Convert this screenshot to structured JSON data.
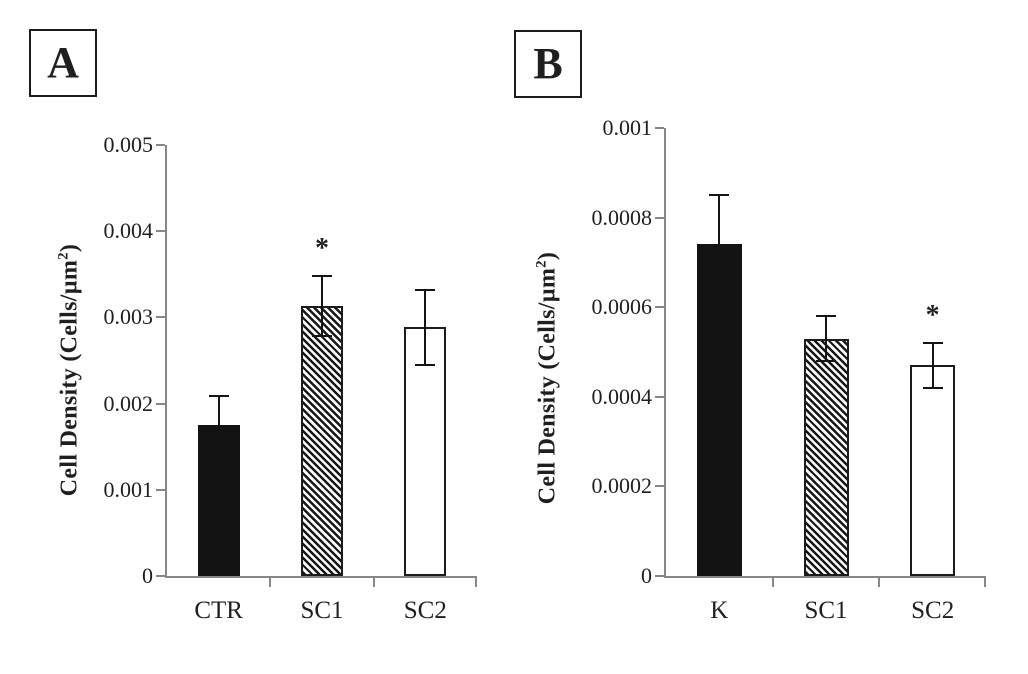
{
  "page": {
    "background": "#ffffff",
    "text_color": "#1f1f1f",
    "axis_color": "#878787"
  },
  "chart_data": [
    {
      "type": "bar",
      "panel_label": "A",
      "title": "",
      "xlabel": "",
      "ylabel": "Cell Density (Cells/µm²)",
      "ylabel_main": "Cell Density (Cells/µm",
      "ylabel_sup": "2",
      "ylabel_close": ")",
      "ylim": [
        0,
        0.005
      ],
      "grid": false,
      "legend": "none",
      "yticks": [
        {
          "value": 0,
          "label": "0"
        },
        {
          "value": 0.001,
          "label": "0.001"
        },
        {
          "value": 0.002,
          "label": "0.002"
        },
        {
          "value": 0.003,
          "label": "0.003"
        },
        {
          "value": 0.004,
          "label": "0.004"
        },
        {
          "value": 0.005,
          "label": "0.005"
        }
      ],
      "categories": [
        "CTR",
        "SC1",
        "SC2"
      ],
      "bars": [
        {
          "category": "CTR",
          "value": 0.00175,
          "err_up": 0.00034,
          "err_down": 0.00034,
          "fill": "solid-black",
          "sig": ""
        },
        {
          "category": "SC1",
          "value": 0.00313,
          "err_up": 0.00035,
          "err_down": 0.00035,
          "fill": "hatched",
          "sig": "*"
        },
        {
          "category": "SC2",
          "value": 0.00289,
          "err_up": 0.00043,
          "err_down": 0.00044,
          "fill": "white",
          "sig": ""
        }
      ]
    },
    {
      "type": "bar",
      "panel_label": "B",
      "title": "",
      "xlabel": "",
      "ylabel": "Cell Density (Cells/µm²)",
      "ylabel_main": "Cell Density (Cells/µm",
      "ylabel_sup": "2",
      "ylabel_close": ")",
      "ylim": [
        0,
        0.001
      ],
      "grid": false,
      "legend": "none",
      "yticks": [
        {
          "value": 0,
          "label": "0"
        },
        {
          "value": 0.0002,
          "label": "0.0002"
        },
        {
          "value": 0.0004,
          "label": "0.0004"
        },
        {
          "value": 0.0006,
          "label": "0.0006"
        },
        {
          "value": 0.0008,
          "label": "0.0008"
        },
        {
          "value": 0.001,
          "label": "0.001"
        }
      ],
      "categories": [
        "K",
        "SC1",
        "SC2"
      ],
      "bars": [
        {
          "category": "K",
          "value": 0.00074,
          "err_up": 0.00011,
          "err_down": 0.00011,
          "fill": "solid-black",
          "sig": ""
        },
        {
          "category": "SC1",
          "value": 0.00053,
          "err_up": 5e-05,
          "err_down": 5e-05,
          "fill": "hatched",
          "sig": ""
        },
        {
          "category": "SC2",
          "value": 0.00047,
          "err_up": 5e-05,
          "err_down": 5e-05,
          "fill": "white",
          "sig": "*"
        }
      ]
    }
  ]
}
